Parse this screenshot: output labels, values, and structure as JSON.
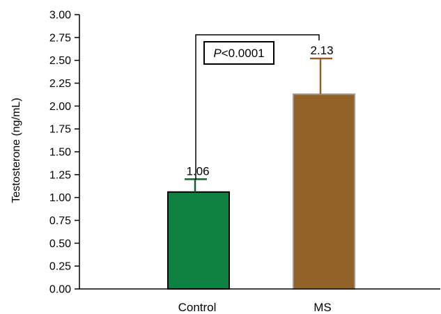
{
  "chart_data": {
    "type": "bar",
    "categories": [
      "Control",
      "MS"
    ],
    "values": [
      1.06,
      2.13
    ],
    "error_upper": [
      1.2,
      2.52
    ],
    "data_labels": [
      "1.06",
      "2.13"
    ],
    "bar_colors": [
      "#0e8040",
      "#926128"
    ],
    "error_colors": [
      "#1a5c34",
      "#926128"
    ],
    "ylabel": "Testosterone (ng/mL)",
    "ylim": [
      0,
      3.0
    ],
    "yticks": [
      "0.00",
      "0.25",
      "0.50",
      "0.75",
      "1.00",
      "1.25",
      "1.50",
      "1.75",
      "2.00",
      "2.25",
      "2.50",
      "2.75",
      "3.00"
    ],
    "grid": false,
    "annotation": {
      "p_prefix": "P",
      "p_rest": "<0.0001"
    }
  }
}
